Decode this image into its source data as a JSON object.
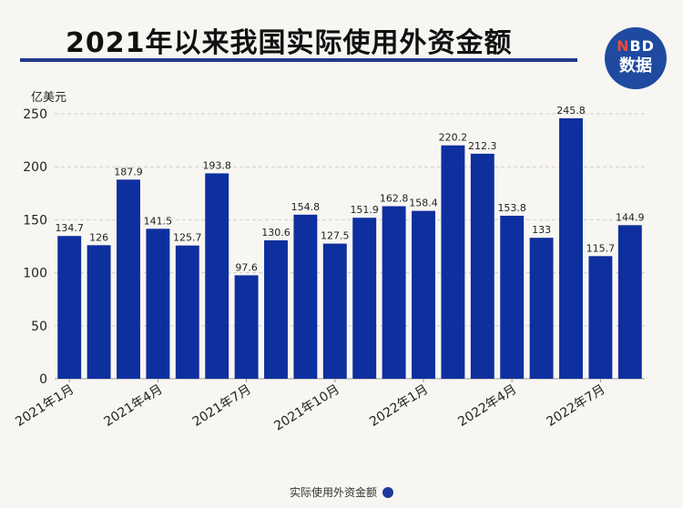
{
  "title": "2021年以来我国实际使用外资金额",
  "logo": {
    "line1_n": "N",
    "line1_rest": "BD",
    "line2": "数据"
  },
  "colors": {
    "bar": "#0e2f9e",
    "title_rule": "#1e3a8a",
    "logo": "#1f4aa0"
  },
  "chart_data": {
    "type": "bar",
    "ylabel": "亿美元",
    "ylim": [
      0,
      250
    ],
    "yticks": [
      0,
      50,
      100,
      150,
      200,
      250
    ],
    "grid": true,
    "legend": "bottom",
    "x_tick_labels": [
      {
        "index": 0,
        "label": "2021年1月"
      },
      {
        "index": 3,
        "label": "2021年4月"
      },
      {
        "index": 6,
        "label": "2021年7月"
      },
      {
        "index": 9,
        "label": "2021年10月"
      },
      {
        "index": 12,
        "label": "2022年1月"
      },
      {
        "index": 15,
        "label": "2022年4月"
      },
      {
        "index": 18,
        "label": "2022年7月"
      }
    ],
    "series": [
      {
        "name": "实际使用外资金额",
        "values": [
          134.7,
          126,
          187.9,
          141.5,
          125.7,
          193.8,
          97.6,
          130.6,
          154.8,
          127.5,
          151.9,
          162.8,
          158.4,
          220.2,
          212.3,
          153.8,
          133,
          245.8,
          115.7,
          144.9
        ]
      }
    ]
  }
}
